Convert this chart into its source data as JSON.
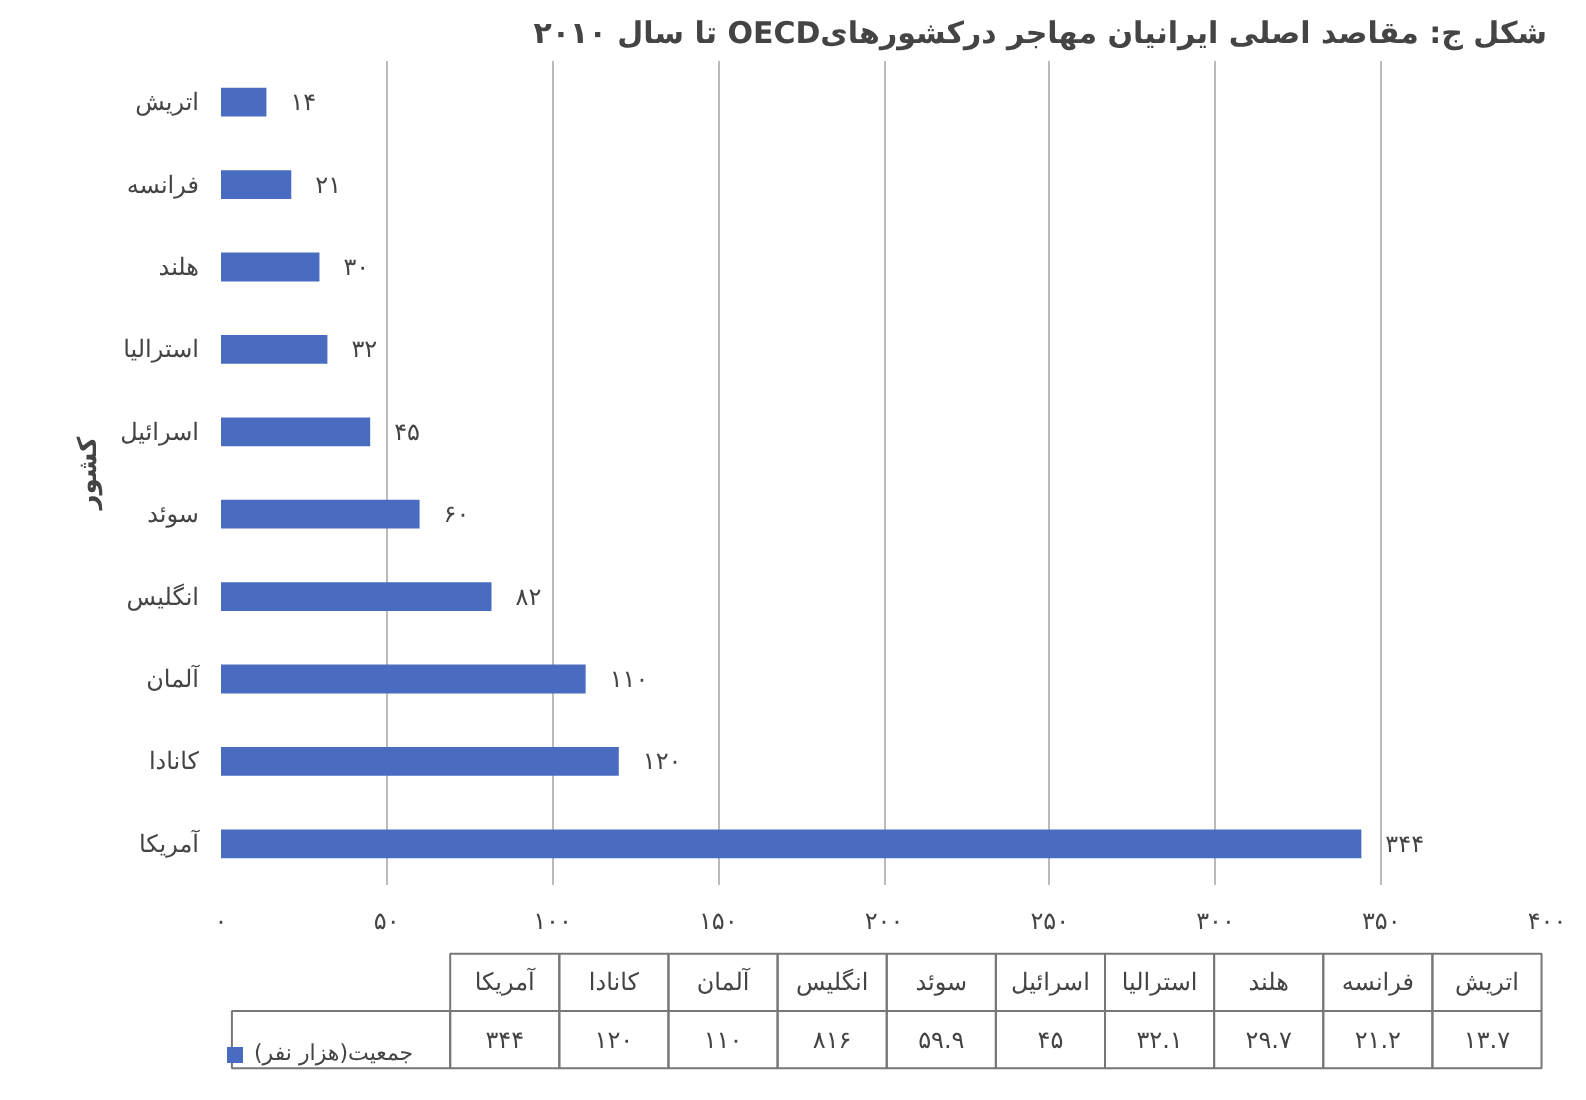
{
  "chart_data": {
    "type": "bar",
    "orientation": "horizontal",
    "title": "شکل ج: مقاصد اصلی ایرانیان مهاجر درکشورهایOECD تا سال ۲۰۱۰",
    "ylabel": "کشور",
    "categories": [
      "اتریش",
      "فرانسه",
      "هلند",
      "استرالیا",
      "اسرائیل",
      "سوئد",
      "انگلیس",
      "آلمان",
      "کانادا",
      "آمریکا"
    ],
    "series": [
      {
        "name": "جمعیت(هزار نفر)",
        "color": "#4a6cc0",
        "values": [
          13.7,
          21.2,
          29.7,
          32.1,
          45,
          59.9,
          81.6,
          110,
          120,
          344
        ],
        "value_labels": [
          "۱۴",
          "۲۱",
          "۳۰",
          "۳۲",
          "۴۵",
          "۶۰",
          "۸۲",
          "۱۱۰",
          "۱۲۰",
          "۳۴۴"
        ]
      }
    ],
    "xlim": [
      0,
      400
    ],
    "xticks": [
      {
        "value": 0,
        "label": "۰"
      },
      {
        "value": 50,
        "label": "۵۰"
      },
      {
        "value": 100,
        "label": "۱۰۰"
      },
      {
        "value": 150,
        "label": "۱۵۰"
      },
      {
        "value": 200,
        "label": "۲۰۰"
      },
      {
        "value": 250,
        "label": "۲۵۰"
      },
      {
        "value": 300,
        "label": "۳۰۰"
      },
      {
        "value": 350,
        "label": "۳۵۰"
      },
      {
        "value": 400,
        "label": "۴۰۰"
      }
    ],
    "grid": "x",
    "legend": "bottom",
    "annotations": [
      "۱۳.۷",
      "۲۱.۲",
      "۲۹.۷",
      "۳۲.۱",
      "۴۵",
      "۵۹.۹",
      "۸۱۶",
      "۱۱۰",
      "۱۲۰",
      "۳۴۴"
    ]
  }
}
